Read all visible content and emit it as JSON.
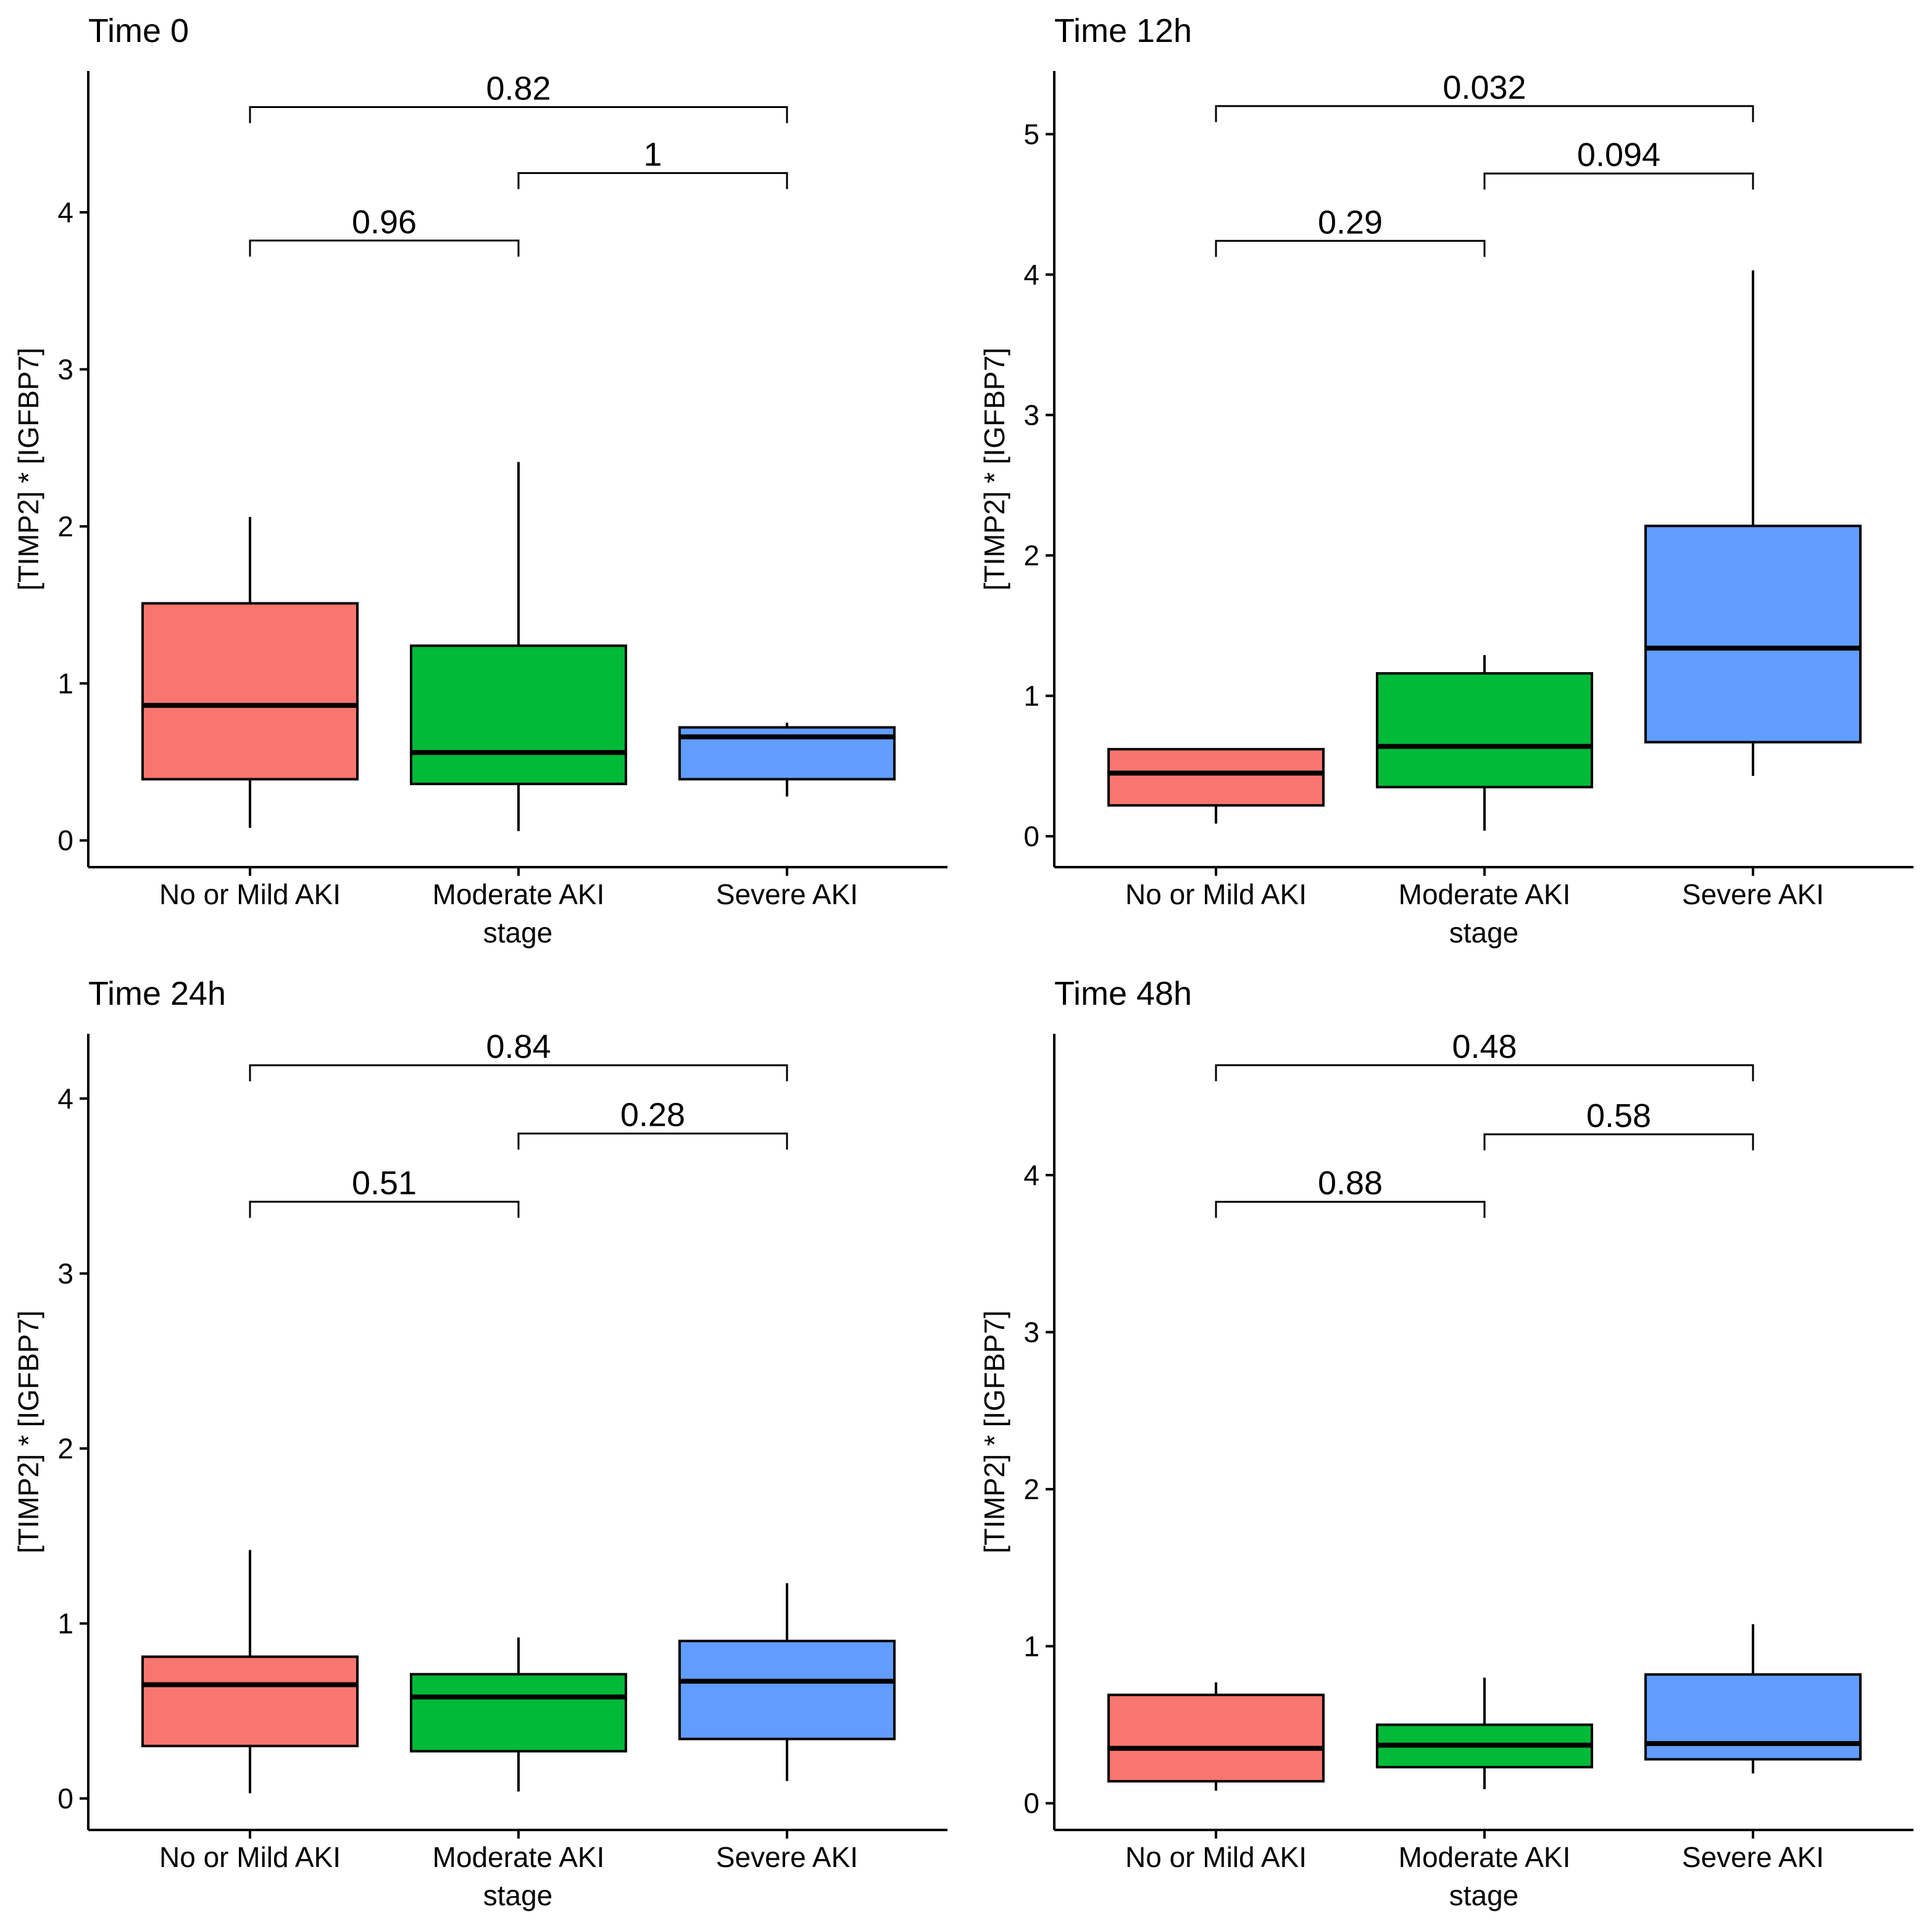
{
  "chart_data": [
    {
      "type": "box",
      "title": "Time 0",
      "xlabel": "stage",
      "ylabel": "[TIMP2] * [IGFBP7]",
      "ylim": [
        -0.17,
        4.9
      ],
      "yticks": [
        0,
        1,
        2,
        3,
        4
      ],
      "grid": false,
      "categories": [
        "No or Mild AKI",
        "Moderate AKI",
        "Severe AKI"
      ],
      "colors": [
        "#F8766D",
        "#00BA38",
        "#619CFF"
      ],
      "boxes": [
        {
          "min": 0.08,
          "q1": 0.39,
          "median": 0.86,
          "q3": 1.51,
          "max": 2.06
        },
        {
          "min": 0.06,
          "q1": 0.36,
          "median": 0.56,
          "q3": 1.24,
          "max": 2.41
        },
        {
          "min": 0.28,
          "q1": 0.39,
          "median": 0.66,
          "q3": 0.72,
          "max": 0.75
        }
      ],
      "comparisons": [
        {
          "from": 0,
          "to": 1,
          "y": 3.82,
          "label": "0.96"
        },
        {
          "from": 1,
          "to": 2,
          "y": 4.25,
          "label": "1"
        },
        {
          "from": 0,
          "to": 2,
          "y": 4.67,
          "label": "0.82"
        }
      ]
    },
    {
      "type": "box",
      "title": "Time 12h",
      "xlabel": "stage",
      "ylabel": "[TIMP2] * [IGFBP7]",
      "ylim": [
        -0.22,
        5.45
      ],
      "yticks": [
        0,
        1,
        2,
        3,
        4,
        5
      ],
      "grid": false,
      "categories": [
        "No or Mild AKI",
        "Moderate AKI",
        "Severe AKI"
      ],
      "colors": [
        "#F8766D",
        "#00BA38",
        "#619CFF"
      ],
      "boxes": [
        {
          "min": 0.09,
          "q1": 0.22,
          "median": 0.45,
          "q3": 0.62,
          "max": 0.62
        },
        {
          "min": 0.04,
          "q1": 0.35,
          "median": 0.64,
          "q3": 1.16,
          "max": 1.29
        },
        {
          "min": 0.43,
          "q1": 0.67,
          "median": 1.34,
          "q3": 2.21,
          "max": 4.03
        }
      ],
      "comparisons": [
        {
          "from": 0,
          "to": 1,
          "y": 4.24,
          "label": "0.29"
        },
        {
          "from": 1,
          "to": 2,
          "y": 4.72,
          "label": "0.094"
        },
        {
          "from": 0,
          "to": 2,
          "y": 5.2,
          "label": "0.032"
        }
      ]
    },
    {
      "type": "box",
      "title": "Time 24h",
      "xlabel": "stage",
      "ylabel": "[TIMP2] * [IGFBP7]",
      "ylim": [
        -0.18,
        4.37
      ],
      "yticks": [
        0,
        1,
        2,
        3,
        4
      ],
      "grid": false,
      "categories": [
        "No or Mild AKI",
        "Moderate AKI",
        "Severe AKI"
      ],
      "colors": [
        "#F8766D",
        "#00BA38",
        "#619CFF"
      ],
      "boxes": [
        {
          "min": 0.03,
          "q1": 0.3,
          "median": 0.65,
          "q3": 0.81,
          "max": 1.42
        },
        {
          "min": 0.04,
          "q1": 0.27,
          "median": 0.58,
          "q3": 0.71,
          "max": 0.92
        },
        {
          "min": 0.1,
          "q1": 0.34,
          "median": 0.67,
          "q3": 0.9,
          "max": 1.23
        }
      ],
      "comparisons": [
        {
          "from": 0,
          "to": 1,
          "y": 3.41,
          "label": "0.51"
        },
        {
          "from": 1,
          "to": 2,
          "y": 3.8,
          "label": "0.28"
        },
        {
          "from": 0,
          "to": 2,
          "y": 4.19,
          "label": "0.84"
        }
      ]
    },
    {
      "type": "box",
      "title": "Time 48h",
      "xlabel": "stage",
      "ylabel": "[TIMP2] * [IGFBP7]",
      "ylim": [
        -0.17,
        4.9
      ],
      "yticks": [
        0,
        1,
        2,
        3,
        4
      ],
      "grid": false,
      "categories": [
        "No or Mild AKI",
        "Moderate AKI",
        "Severe AKI"
      ],
      "colors": [
        "#F8766D",
        "#00BA38",
        "#619CFF"
      ],
      "boxes": [
        {
          "min": 0.08,
          "q1": 0.14,
          "median": 0.35,
          "q3": 0.69,
          "max": 0.77
        },
        {
          "min": 0.09,
          "q1": 0.23,
          "median": 0.37,
          "q3": 0.5,
          "max": 0.8
        },
        {
          "min": 0.19,
          "q1": 0.28,
          "median": 0.38,
          "q3": 0.82,
          "max": 1.14
        }
      ],
      "comparisons": [
        {
          "from": 0,
          "to": 1,
          "y": 3.83,
          "label": "0.88"
        },
        {
          "from": 1,
          "to": 2,
          "y": 4.26,
          "label": "0.58"
        },
        {
          "from": 0,
          "to": 2,
          "y": 4.7,
          "label": "0.48"
        }
      ]
    }
  ]
}
